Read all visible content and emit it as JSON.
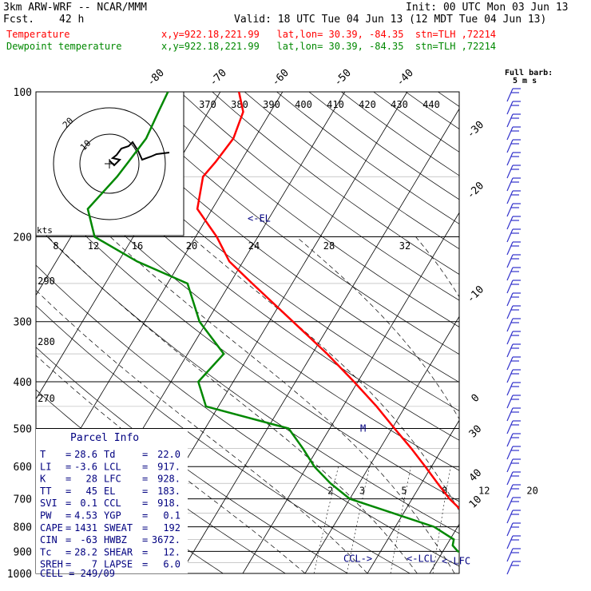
{
  "header": {
    "model": "3km ARW-WRF -- NCAR/MMM",
    "init": "Init: 00 UTC Mon 03 Jun 13",
    "fcst_label": "Fcst.",
    "fcst_value": "42 h",
    "valid": "Valid: 18 UTC Tue 04 Jun 13 (12 MDT Tue 04 Jun 13)",
    "temp_label": "Temperature",
    "dew_label": "Dewpoint temperature",
    "location_line": "x,y=922.18,221.99   lat,lon= 30.39, -84.35  stn=TLH ,72214"
  },
  "colors": {
    "temperature": "#ff0000",
    "dewpoint": "#008800",
    "parcel_info": "#000080",
    "grid": "#000000"
  },
  "chart_data": {
    "type": "line",
    "title": "",
    "y_axis": "pressure (hPa), log scale",
    "x_axis": "temperature (C), skew-T",
    "pressure_ticks": [
      100,
      200,
      300,
      400,
      500,
      600,
      700,
      800,
      900,
      1000
    ],
    "isotherm_labels_top": [
      -80,
      -70,
      -60,
      -50,
      -40
    ],
    "isotherm_labels_right": [
      -30,
      -20,
      -10,
      0,
      10,
      20,
      30,
      40
    ],
    "theta_labels": [
      370,
      380,
      390,
      400,
      410,
      420,
      430,
      440
    ],
    "theta_labels_left": [
      290,
      280,
      270
    ],
    "mixing_ratio_labels": [
      2,
      3,
      5,
      8,
      12,
      20
    ],
    "hodo_labels": {
      "speed_unit": "kts",
      "rings": [
        10,
        20
      ]
    },
    "hodo_x_ticks": [
      8,
      12,
      16,
      20,
      24,
      28,
      32
    ],
    "series": [
      {
        "name": "Temperature",
        "pressure": [
          1000,
          975,
          950,
          925,
          900,
          875,
          850,
          800,
          750,
          700,
          650,
          600,
          550,
          500,
          450,
          400,
          350,
          300,
          250,
          225,
          200,
          175,
          150,
          140,
          125,
          110,
          100
        ],
        "temperature": [
          28.6,
          26.6,
          24.2,
          22.4,
          20.4,
          18.6,
          17.0,
          13.2,
          9.8,
          6.0,
          2.6,
          -1.0,
          -5.0,
          -9.6,
          -14.6,
          -20.6,
          -27.6,
          -36.2,
          -46.4,
          -52.2,
          -56.6,
          -62.4,
          -64.6,
          -64.0,
          -63.4,
          -64.4,
          -67.0
        ]
      },
      {
        "name": "Dewpoint temperature",
        "pressure": [
          1000,
          975,
          950,
          925,
          900,
          875,
          850,
          800,
          750,
          700,
          650,
          600,
          550,
          500,
          450,
          400,
          350,
          300,
          250,
          225,
          200,
          175,
          150,
          140,
          125,
          110,
          100
        ],
        "dewpoint": [
          22.0,
          20.2,
          18.8,
          17.8,
          12.4,
          11.0,
          10.6,
          6.2,
          -1.6,
          -10.0,
          -14.6,
          -18.8,
          -22.4,
          -26.6,
          -42.0,
          -45.6,
          -44.2,
          -51.2,
          -56.8,
          -67.0,
          -76.2,
          -80.0,
          -78.4,
          -78.0,
          -77.4,
          -78.0,
          -78.4
        ]
      }
    ],
    "levels": [
      {
        "label": "<-EL",
        "pressure": 183
      },
      {
        "label": "M",
        "pressure": 500
      },
      {
        "label": "CCL->",
        "pressure": 918
      },
      {
        "label": "<-LCL",
        "pressure": 917
      },
      {
        "label": "<-LFC",
        "pressure": 928
      }
    ],
    "wind_barbs_header": {
      "line1": "Full barb:",
      "line2": "5 m s"
    }
  },
  "parcel_info": {
    "title": "Parcel Info",
    "rows": [
      [
        "T",
        "28.6",
        "Td",
        "22.0"
      ],
      [
        "LI",
        "-3.6",
        "LCL",
        "917."
      ],
      [
        "K",
        "28",
        "LFC",
        "928."
      ],
      [
        "TT",
        "45",
        "EL",
        "183."
      ],
      [
        "SVI",
        "0.1",
        "CCL",
        "918."
      ],
      [
        "PW",
        "4.53",
        "YGP",
        "0.1"
      ],
      [
        "CAPE",
        "1431",
        "SWEAT",
        "192"
      ],
      [
        "CIN",
        "-63",
        "HWBZ",
        "3672."
      ],
      [
        "Tc",
        "28.2",
        "SHEAR",
        "12."
      ],
      [
        "SREH",
        "7",
        "LAPSE",
        "6.0"
      ]
    ],
    "cell": "CELL = 249/09"
  }
}
